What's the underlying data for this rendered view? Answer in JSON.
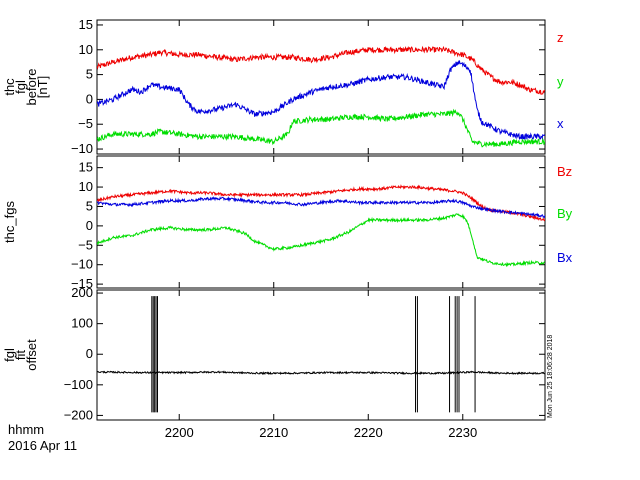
{
  "colors": {
    "z": "#ee0000",
    "y": "#00dd00",
    "x": "#0000dd",
    "black": "#000000"
  },
  "footer": {
    "line1": "hhmm",
    "line2": "2016 Apr 11"
  },
  "stamp": "Mon Jun 25 18:06:28 2018",
  "xaxis": {
    "range": [
      2191.3,
      2238.7
    ],
    "ticks": [
      2200,
      2210,
      2220,
      2230
    ],
    "tick_labels": [
      "2200",
      "2210",
      "2220",
      "2230"
    ]
  },
  "chart_data": [
    {
      "type": "line",
      "ylabel_lines": [
        "thc",
        "fgl",
        "before",
        "[nT]"
      ],
      "ylim": [
        -11,
        16
      ],
      "yticks": [
        -10,
        -5,
        0,
        5,
        10,
        15
      ],
      "ytick_labels": [
        "−10",
        "−5",
        "0",
        "5",
        "10",
        "15"
      ],
      "series": [
        {
          "name": "z",
          "color": "#ee0000",
          "x": [
            2191.3,
            2193,
            2195,
            2197,
            2198,
            2200,
            2202,
            2204,
            2206,
            2208,
            2210,
            2212,
            2214,
            2216,
            2218,
            2220,
            2222,
            2224,
            2226,
            2228,
            2230,
            2231,
            2232,
            2233,
            2234,
            2235,
            2236,
            2237,
            2238.7
          ],
          "y": [
            6.5,
            7.5,
            8.5,
            9.0,
            9.5,
            9.0,
            9.0,
            8.5,
            8.0,
            8.5,
            8.5,
            8.5,
            8.0,
            8.5,
            9.5,
            10.0,
            10.0,
            10.0,
            10.0,
            10.0,
            9.0,
            8.0,
            6.0,
            4.5,
            3.5,
            3.5,
            3.0,
            2.0,
            1.5
          ]
        },
        {
          "name": "y",
          "color": "#00dd00",
          "x": [
            2191.3,
            2193,
            2195,
            2197,
            2198,
            2200,
            2202,
            2204,
            2206,
            2208,
            2210,
            2211.5,
            2212,
            2214,
            2216,
            2218,
            2220,
            2222,
            2224,
            2226,
            2228,
            2229.5,
            2230,
            2231,
            2232,
            2233,
            2234,
            2236,
            2238.7
          ],
          "y": [
            -8.0,
            -7.0,
            -7.0,
            -7.0,
            -6.5,
            -7.0,
            -7.5,
            -7.5,
            -7.5,
            -8.0,
            -8.5,
            -7.0,
            -4.5,
            -4.0,
            -4.0,
            -3.5,
            -3.5,
            -4.0,
            -3.5,
            -3.0,
            -3.0,
            -2.5,
            -4.0,
            -8.5,
            -9.0,
            -9.0,
            -9.0,
            -8.5,
            -8.5
          ]
        },
        {
          "name": "x",
          "color": "#0000dd",
          "x": [
            2191.3,
            2193,
            2195,
            2196,
            2197,
            2198,
            2200,
            2201,
            2202,
            2204,
            2206,
            2208,
            2210,
            2212,
            2214,
            2216,
            2218,
            2220,
            2222,
            2224,
            2226,
            2228,
            2228.7,
            2229.5,
            2230,
            2230.8,
            2231.5,
            2232,
            2233,
            2234,
            2236,
            2238.7
          ],
          "y": [
            -1.0,
            0.0,
            2.0,
            1.5,
            3.0,
            2.5,
            2.0,
            -1.0,
            -2.5,
            -2.0,
            -1.0,
            -3.0,
            -2.5,
            0.0,
            1.5,
            2.5,
            3.0,
            4.0,
            4.5,
            4.5,
            3.5,
            2.5,
            6.0,
            7.5,
            7.0,
            6.0,
            -2.0,
            -4.5,
            -5.5,
            -6.5,
            -7.5,
            -7.5
          ]
        }
      ]
    },
    {
      "type": "line",
      "ylabel_lines": [
        "thc_fgs"
      ],
      "ylim": [
        -16,
        18
      ],
      "yticks": [
        -15,
        -10,
        -5,
        0,
        5,
        10,
        15
      ],
      "ytick_labels": [
        "−15",
        "−10",
        "−5",
        "0",
        "5",
        "10",
        "15"
      ],
      "series": [
        {
          "name": "Bz",
          "color": "#ee0000",
          "x": [
            2191.3,
            2193,
            2195,
            2197,
            2199,
            2201,
            2203,
            2205,
            2207,
            2209,
            2211,
            2213,
            2215,
            2217,
            2219,
            2221,
            2223,
            2225,
            2227,
            2229,
            2230,
            2231,
            2232,
            2233,
            2235,
            2237,
            2238.7
          ],
          "y": [
            6.5,
            7.5,
            8.0,
            8.5,
            9.0,
            8.5,
            8.5,
            8.0,
            8.0,
            8.0,
            8.0,
            8.0,
            8.5,
            9.0,
            9.5,
            9.5,
            10.0,
            10.0,
            9.5,
            9.0,
            8.5,
            7.0,
            5.0,
            4.0,
            3.5,
            2.5,
            1.5
          ]
        },
        {
          "name": "By",
          "color": "#00dd00",
          "x": [
            2191.3,
            2193,
            2195,
            2197,
            2199,
            2201,
            2203,
            2205,
            2207,
            2208,
            2210,
            2212,
            2214,
            2216,
            2218,
            2220,
            2222,
            2224,
            2226,
            2228,
            2229.5,
            2230,
            2230.5,
            2231,
            2231.5,
            2233,
            2235,
            2237,
            2238.7
          ],
          "y": [
            -4.5,
            -3.0,
            -2.5,
            -1.0,
            -0.5,
            -1.0,
            -1.0,
            -0.5,
            -2.0,
            -4.0,
            -6.0,
            -5.5,
            -4.5,
            -3.5,
            -1.5,
            1.5,
            1.5,
            1.5,
            1.5,
            2.0,
            3.0,
            2.5,
            1.0,
            -3.0,
            -8.0,
            -9.5,
            -10.0,
            -9.5,
            -9.5
          ]
        },
        {
          "name": "Bx",
          "color": "#0000dd",
          "x": [
            2191.3,
            2193,
            2195,
            2197,
            2199,
            2201,
            2203,
            2205,
            2207,
            2209,
            2211,
            2213,
            2215,
            2217,
            2219,
            2221,
            2223,
            2225,
            2227,
            2229,
            2230,
            2231,
            2233,
            2235,
            2237,
            2238.7
          ],
          "y": [
            6.0,
            5.5,
            5.5,
            6.0,
            6.5,
            6.5,
            7.0,
            7.0,
            6.5,
            6.0,
            6.0,
            5.5,
            6.0,
            6.5,
            6.0,
            6.0,
            6.0,
            6.0,
            6.0,
            6.5,
            6.0,
            5.0,
            4.0,
            3.5,
            3.0,
            2.5
          ]
        }
      ]
    },
    {
      "type": "line",
      "ylabel_lines": [
        "fgl",
        "fit",
        "offset"
      ],
      "ylim": [
        -215,
        210
      ],
      "yticks": [
        -200,
        -100,
        0,
        100,
        200
      ],
      "ytick_labels": [
        "−200",
        "−100",
        "0",
        "100",
        "200"
      ],
      "series": [
        {
          "name": "",
          "color": "#000000",
          "baseline": -60,
          "x": [
            2191.3,
            2196,
            2200,
            2204,
            2208,
            2212,
            2216,
            2220,
            2224,
            2228,
            2231,
            2234,
            2238.7
          ],
          "y": [
            -58,
            -60,
            -60,
            -58,
            -62,
            -62,
            -60,
            -60,
            -62,
            -62,
            -58,
            -62,
            -62
          ],
          "spikes": [
            2197.1,
            2197.25,
            2197.4,
            2197.55,
            2197.7,
            2225.0,
            2225.2,
            2228.6,
            2229.2,
            2229.4,
            2229.6,
            2231.3
          ],
          "spike_range": [
            -190,
            190
          ]
        }
      ]
    }
  ]
}
